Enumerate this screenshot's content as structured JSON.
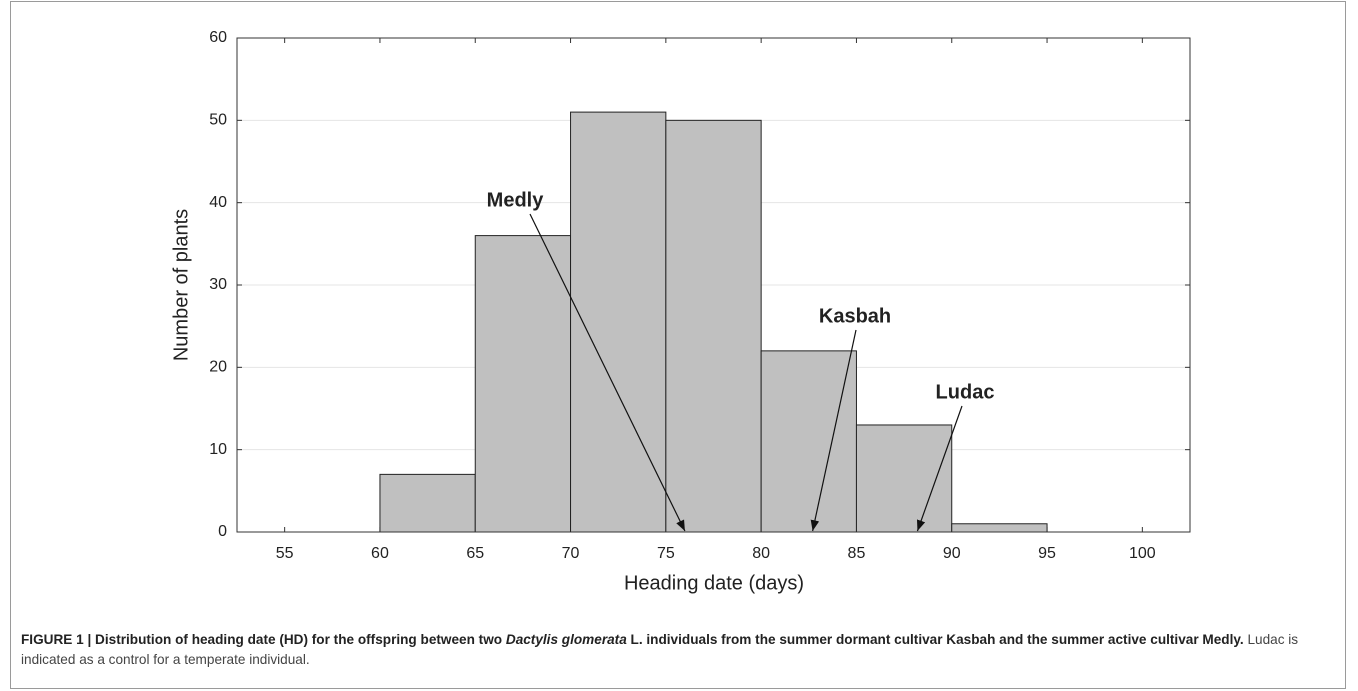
{
  "chart_data": {
    "type": "histogram",
    "xlabel": "Heading date (days)",
    "ylabel": "Number of plants",
    "bins": [
      60,
      65,
      70,
      75,
      80,
      85,
      90,
      95
    ],
    "counts": [
      7,
      36,
      51,
      50,
      22,
      13,
      1
    ],
    "color": "#c0c0c0",
    "xlim": [
      52.5,
      102.5
    ],
    "xticks": [
      55,
      60,
      65,
      70,
      75,
      80,
      85,
      90,
      95,
      100
    ],
    "ylim": [
      0,
      60
    ],
    "yticks": [
      0,
      10,
      20,
      30,
      40,
      50,
      60
    ],
    "grid": true,
    "annotations": [
      {
        "text": "Medly",
        "x": 76
      },
      {
        "text": "Kasbah",
        "x": 82.7
      },
      {
        "text": "Ludac",
        "x": 88.2
      }
    ],
    "caption": {
      "parts": [
        "FIGURE 1 | Distribution of heading date (HD) for the offspring between two ",
        "Dactylis glomerata",
        " L. individuals from the summer dormant cultivar Kasbah and the summer active cultivar Medly.",
        " Ludac is indicated as a control for a temperate individual."
      ]
    }
  }
}
